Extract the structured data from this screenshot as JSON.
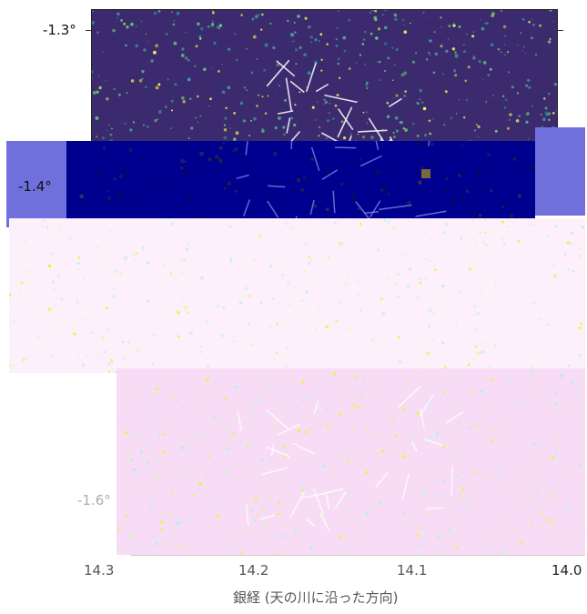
{
  "axes": {
    "y_ticks": [
      "-1.3°",
      "-1.4°",
      "-1.6°"
    ],
    "x_ticks_garbled": [
      "14.3",
      "14.2",
      "14.1"
    ],
    "x_tick_right": "14.0",
    "x_axis_label": "銀経 (天の川に沿った方向)"
  },
  "colors": {
    "panel_dark_bg": "#3b2a6e",
    "panel_navy_bg": "#00008f",
    "panel_lavender": "#7070dd",
    "panel_pink_bg": "#fbe6fb",
    "star_yellow": "#e8f34a",
    "star_cyan": "#aef3e6",
    "streak_white": "#ffffff"
  }
}
